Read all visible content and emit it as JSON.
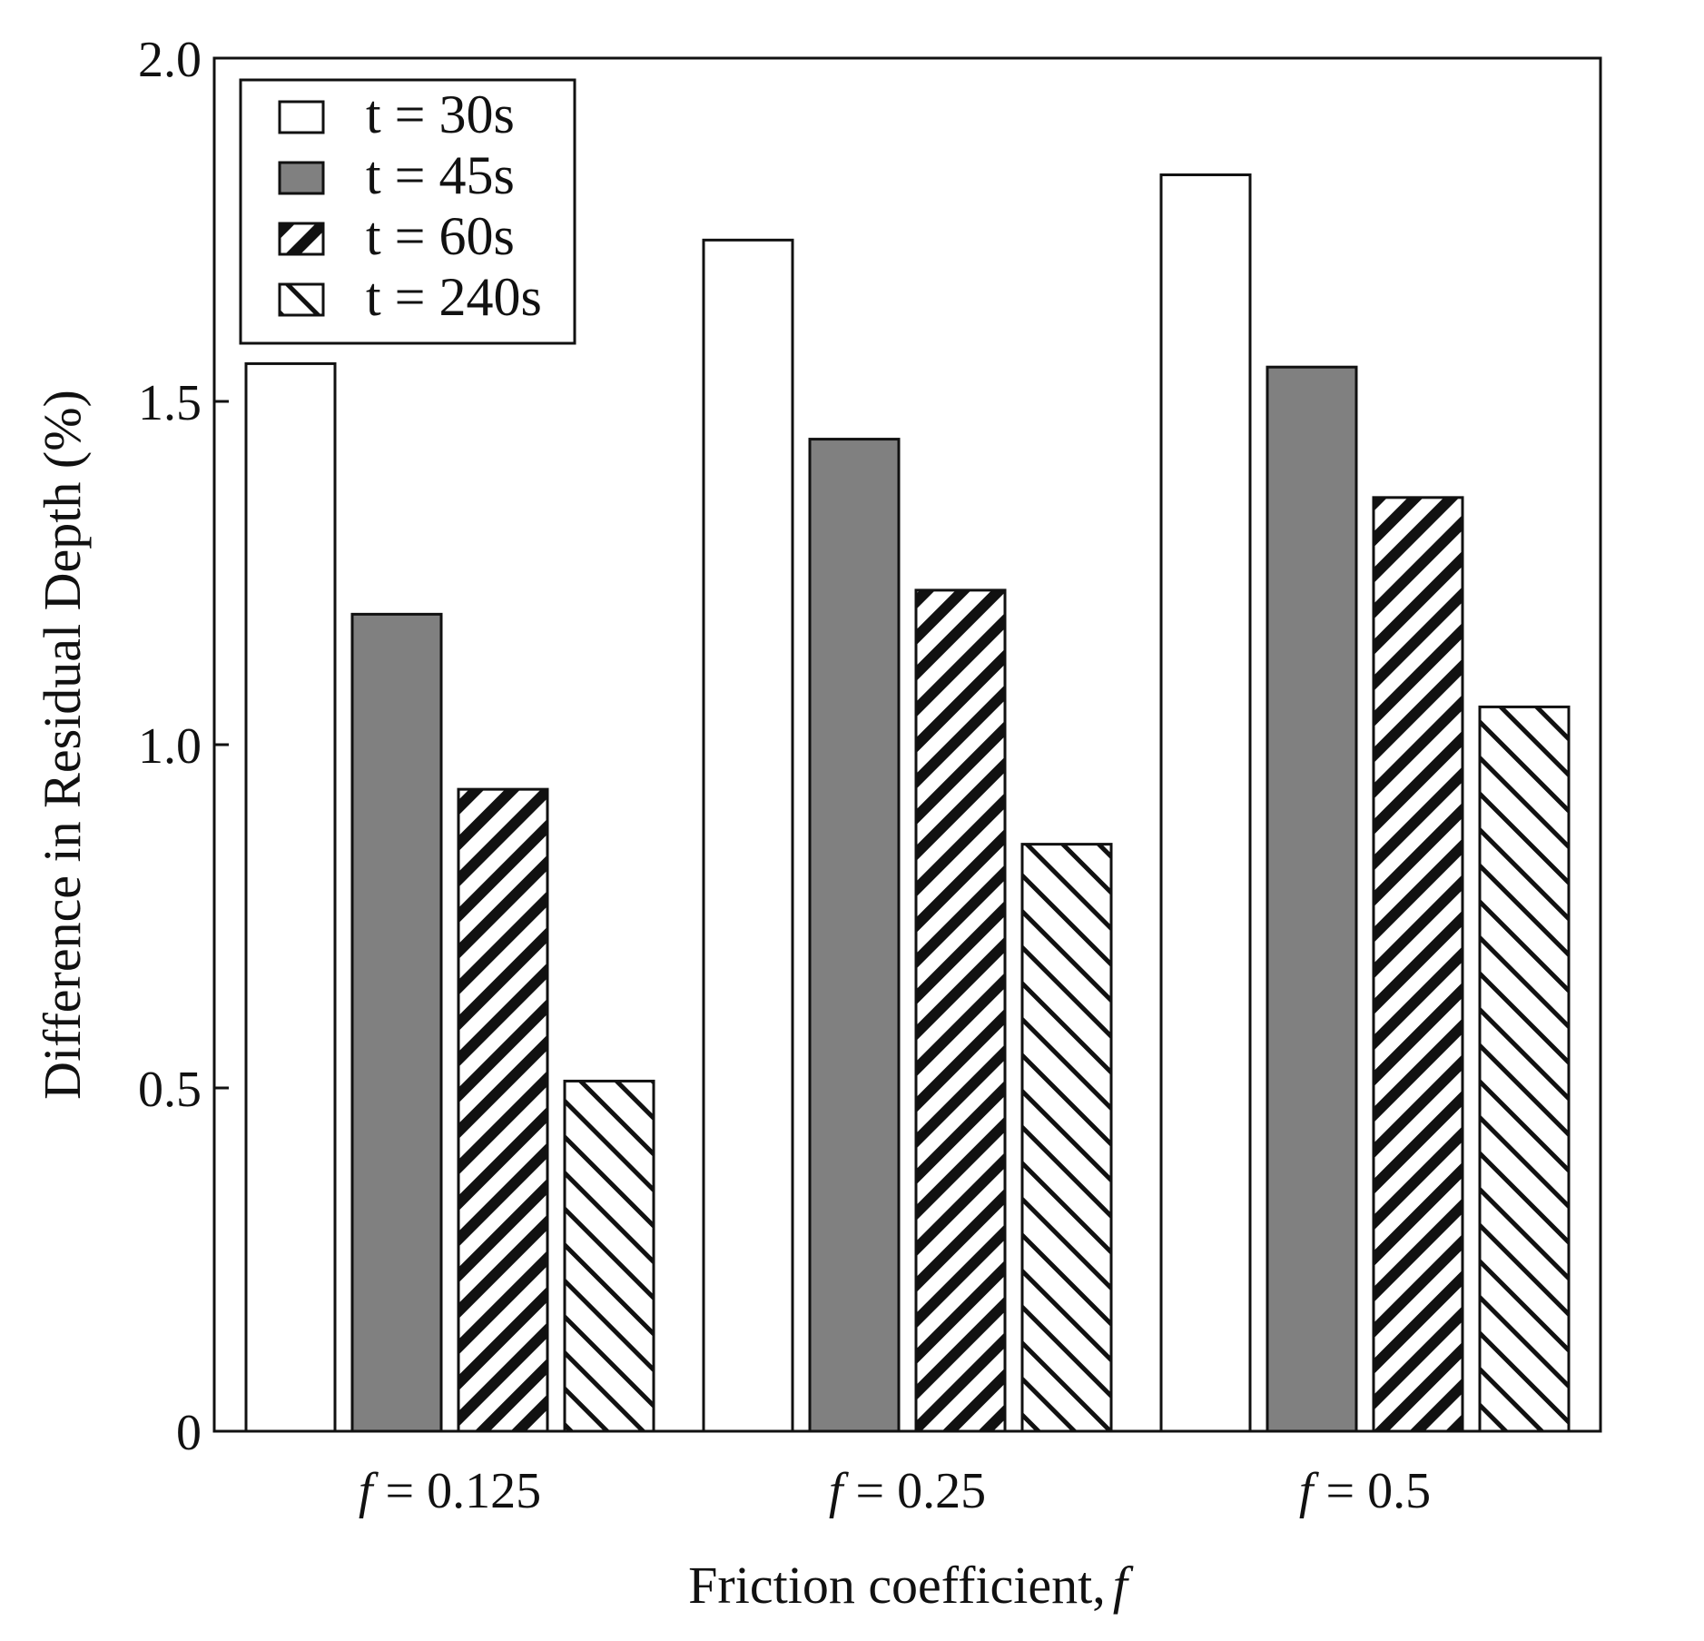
{
  "chart_data": {
    "type": "bar",
    "title": "",
    "xlabel": "Friction coefficient,",
    "xlabel_var": "f",
    "ylabel": "Difference in Residual Depth (%)",
    "ylim": [
      0,
      2.0
    ],
    "yticks": [
      0,
      0.5,
      1.0,
      1.5,
      2.0
    ],
    "ytick_labels": [
      "0",
      "0.5",
      "1.0",
      "1.5",
      "2.0"
    ],
    "categories": [
      {
        "var": "f",
        "rest": " = 0.125"
      },
      {
        "var": "f",
        "rest": " = 0.25"
      },
      {
        "var": "f",
        "rest": " = 0.5"
      }
    ],
    "series": [
      {
        "name": "t = 30s",
        "pattern": "white",
        "values": [
          1.555,
          1.735,
          1.83
        ]
      },
      {
        "name": "t = 45s",
        "pattern": "gray",
        "values": [
          1.19,
          1.445,
          1.55
        ]
      },
      {
        "name": "t = 60s",
        "pattern": "hatch-forward",
        "values": [
          0.935,
          1.225,
          1.36
        ]
      },
      {
        "name": "t = 240s",
        "pattern": "hatch-back",
        "values": [
          0.51,
          0.855,
          1.055
        ]
      }
    ],
    "legend_position": "top-left",
    "grid": false
  },
  "colors": {
    "axis": "#111111",
    "gray_fill": "#808080",
    "hatch": "#111111",
    "white_fill": "#ffffff"
  }
}
